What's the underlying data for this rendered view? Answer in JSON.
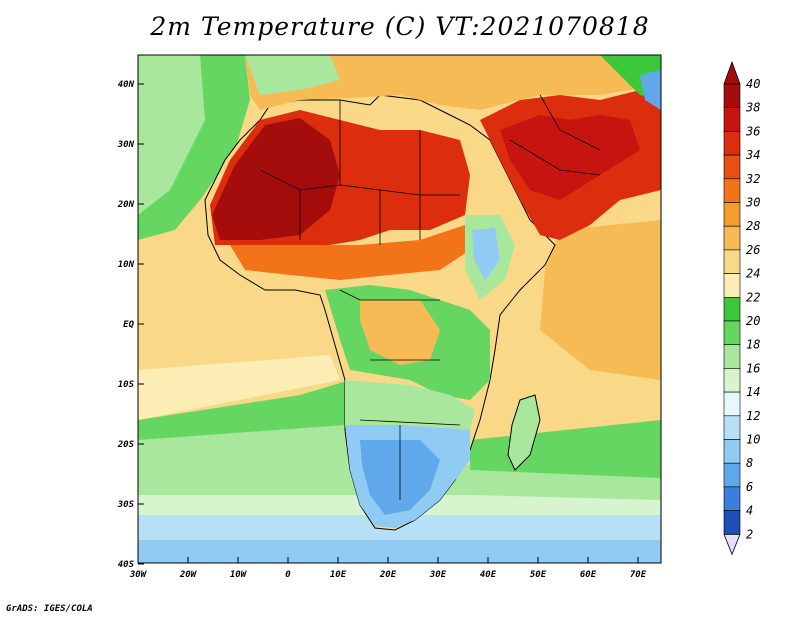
{
  "title": "2m Temperature (C) VT:2021070818",
  "credit": "GrADS: IGES/COLA",
  "map": {
    "lon_ticks": [
      "30W",
      "20W",
      "10W",
      "0",
      "10E",
      "20E",
      "30E",
      "40E",
      "50E",
      "60E",
      "70E"
    ],
    "lat_ticks": [
      "40N",
      "30N",
      "20N",
      "10N",
      "EQ",
      "10S",
      "20S",
      "30S",
      "40S"
    ],
    "lon_range": [
      -30,
      75
    ],
    "lat_range": [
      -40,
      44
    ]
  },
  "colorbar": {
    "labels": [
      "40",
      "38",
      "36",
      "34",
      "32",
      "30",
      "28",
      "26",
      "24",
      "22",
      "20",
      "18",
      "16",
      "14",
      "12",
      "10",
      "8",
      "6",
      "4",
      "2"
    ],
    "colors": [
      "#a50d0d",
      "#c8140f",
      "#dc2d0f",
      "#e84f13",
      "#f27318",
      "#f59d2c",
      "#f7bb55",
      "#f9d987",
      "#fbedb3",
      "#3dc83b",
      "#66d662",
      "#a9e89c",
      "#d6f5cf",
      "#e6f8fb",
      "#b7e0f6",
      "#8fcbf2",
      "#5fa9ea",
      "#3a7fdd",
      "#1f4fb8",
      "#0b1f7a"
    ],
    "bottom_cap_color": "#e8e0f8"
  }
}
